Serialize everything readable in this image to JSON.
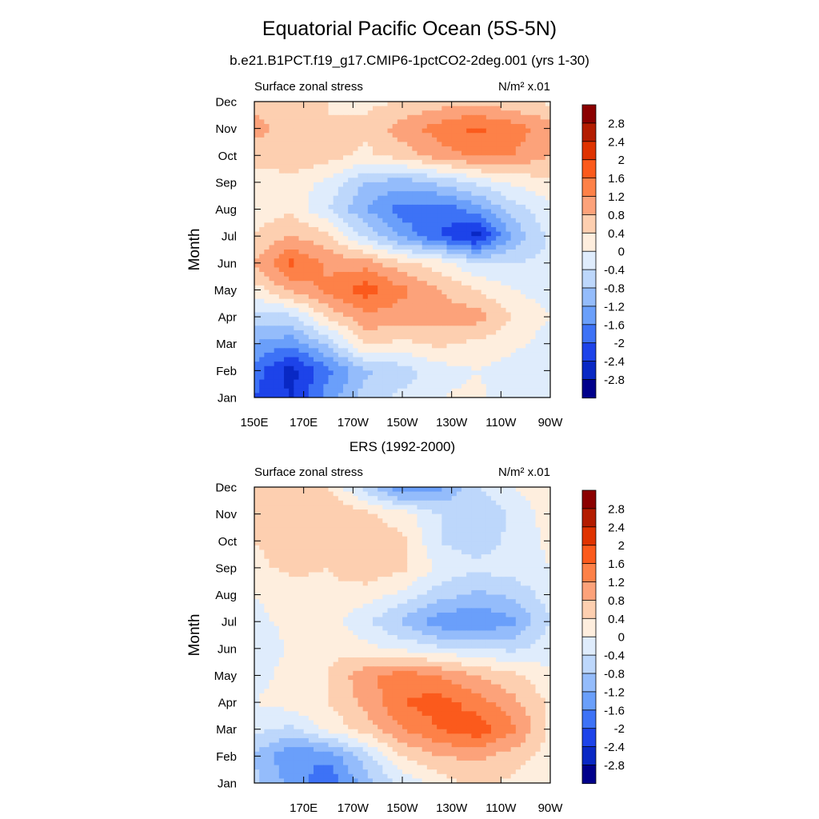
{
  "page": {
    "title": "Equatorial Pacific Ocean (5S-5N)",
    "subtitle": "b.e21.B1PCT.f19_g17.CMIP6-1pctCO2-2deg.001 (yrs 1-30)"
  },
  "colorbar": {
    "levels": [
      "2.8",
      "2.4",
      "2",
      "1.6",
      "1.2",
      "0.8",
      "0.4",
      "0",
      "-0.4",
      "-0.8",
      "-1.2",
      "-1.6",
      "-2",
      "-2.4",
      "-2.8"
    ],
    "colors": [
      "#8b0000",
      "#b31c00",
      "#df3300",
      "#fb5a1c",
      "#fd8148",
      "#fca27a",
      "#fdcfb0",
      "#feeede",
      "#dfecfc",
      "#bdd7fb",
      "#94bcfb",
      "#6a9ffa",
      "#3d72f6",
      "#1d43e9",
      "#0928c4",
      "#00008b"
    ]
  },
  "chart_data": [
    {
      "type": "heatmap",
      "panel_title": "",
      "left_label": "Surface zonal stress",
      "units_label": "N/m² x.01",
      "ylabel": "Month",
      "x_tick_labels": [
        "150E",
        "170E",
        "170W",
        "150W",
        "130W",
        "110W",
        "90W"
      ],
      "x_ticks_lon": [
        150,
        170,
        190,
        210,
        230,
        250,
        270
      ],
      "x_range": [
        150,
        270
      ],
      "y_tick_labels": [
        "Jan",
        "Feb",
        "Mar",
        "Apr",
        "May",
        "Jun",
        "Jul",
        "Aug",
        "Sep",
        "Oct",
        "Nov",
        "Dec"
      ],
      "x_lon": [
        150,
        165,
        180,
        195,
        210,
        225,
        240,
        255,
        270
      ],
      "values": [
        [
          -2.0,
          -2.4,
          -1.4,
          -0.6,
          -0.3,
          0.0,
          0.1,
          -0.2,
          -0.2
        ],
        [
          -1.8,
          -2.6,
          -1.7,
          -0.9,
          -0.6,
          -0.2,
          0.0,
          -0.2,
          -0.2
        ],
        [
          -1.2,
          -1.5,
          -0.7,
          0.5,
          0.3,
          0.5,
          0.3,
          0.1,
          -0.2
        ],
        [
          -0.6,
          -0.5,
          0.5,
          1.1,
          1.0,
          1.0,
          1.0,
          0.4,
          0.0
        ],
        [
          0.2,
          0.9,
          1.3,
          1.8,
          1.3,
          0.8,
          0.4,
          0.0,
          -0.2
        ],
        [
          0.8,
          1.7,
          1.1,
          1.0,
          0.5,
          0.2,
          -0.4,
          -0.4,
          -0.3
        ],
        [
          0.4,
          0.8,
          0.5,
          -0.5,
          -1.3,
          -2.0,
          -2.6,
          -1.1,
          -0.3
        ],
        [
          0.2,
          0.3,
          -0.4,
          -1.2,
          -1.8,
          -1.9,
          -1.4,
          -0.6,
          -0.1
        ],
        [
          0.1,
          0.2,
          -0.1,
          -0.8,
          -1.0,
          -0.7,
          -0.3,
          0.1,
          0.3
        ],
        [
          0.6,
          0.8,
          0.6,
          0.3,
          0.6,
          1.0,
          1.3,
          1.2,
          0.8
        ],
        [
          0.9,
          0.7,
          0.4,
          0.5,
          1.0,
          1.4,
          1.7,
          1.4,
          1.0
        ],
        [
          0.7,
          0.6,
          0.4,
          0.3,
          0.4,
          0.6,
          0.7,
          0.5,
          0.3
        ]
      ]
    },
    {
      "type": "heatmap",
      "panel_title": "ERS (1992-2000)",
      "left_label": "Surface zonal stress",
      "units_label": "N/m² x.01",
      "ylabel": "Month",
      "x_tick_labels": [
        "170E",
        "170W",
        "150W",
        "130W",
        "110W",
        "90W"
      ],
      "x_ticks_lon": [
        170,
        190,
        210,
        230,
        250,
        270
      ],
      "x_range": [
        150,
        270
      ],
      "y_tick_labels": [
        "Jan",
        "Feb",
        "Mar",
        "Apr",
        "May",
        "Jun",
        "Jul",
        "Aug",
        "Sep",
        "Oct",
        "Nov",
        "Dec"
      ],
      "x_lon": [
        150,
        165,
        180,
        195,
        210,
        225,
        240,
        255,
        270
      ],
      "values": [
        [
          -0.7,
          -1.3,
          -1.9,
          -1.0,
          -0.3,
          0.2,
          0.5,
          0.3,
          0.0
        ],
        [
          -0.8,
          -1.6,
          -1.5,
          -0.6,
          0.4,
          0.8,
          0.9,
          0.6,
          0.2
        ],
        [
          -0.3,
          -0.5,
          0.1,
          0.6,
          1.2,
          1.6,
          1.9,
          1.3,
          0.3
        ],
        [
          0.0,
          0.2,
          0.4,
          0.9,
          1.6,
          1.8,
          1.4,
          0.9,
          0.3
        ],
        [
          -0.2,
          0.2,
          0.4,
          1.1,
          1.4,
          1.2,
          0.8,
          0.5,
          0.1
        ],
        [
          -0.4,
          0.1,
          0.3,
          0.1,
          -0.1,
          -0.3,
          -0.4,
          -0.5,
          -0.2
        ],
        [
          -0.1,
          0.1,
          0.2,
          -0.3,
          -0.9,
          -1.5,
          -1.6,
          -1.3,
          -0.4
        ],
        [
          0.0,
          0.2,
          0.3,
          0.2,
          -0.1,
          -0.6,
          -0.9,
          -0.7,
          -0.2
        ],
        [
          0.3,
          0.5,
          0.4,
          0.7,
          0.5,
          -0.1,
          -0.3,
          -0.2,
          0.0
        ],
        [
          0.4,
          0.6,
          0.6,
          0.6,
          0.5,
          -0.4,
          -0.6,
          -0.3,
          0.1
        ],
        [
          0.5,
          0.7,
          0.8,
          0.5,
          0.2,
          -0.4,
          -0.8,
          -0.3,
          0.2
        ],
        [
          0.4,
          0.5,
          0.4,
          -0.6,
          -1.6,
          -1.3,
          -0.4,
          0.0,
          0.3
        ]
      ]
    }
  ]
}
